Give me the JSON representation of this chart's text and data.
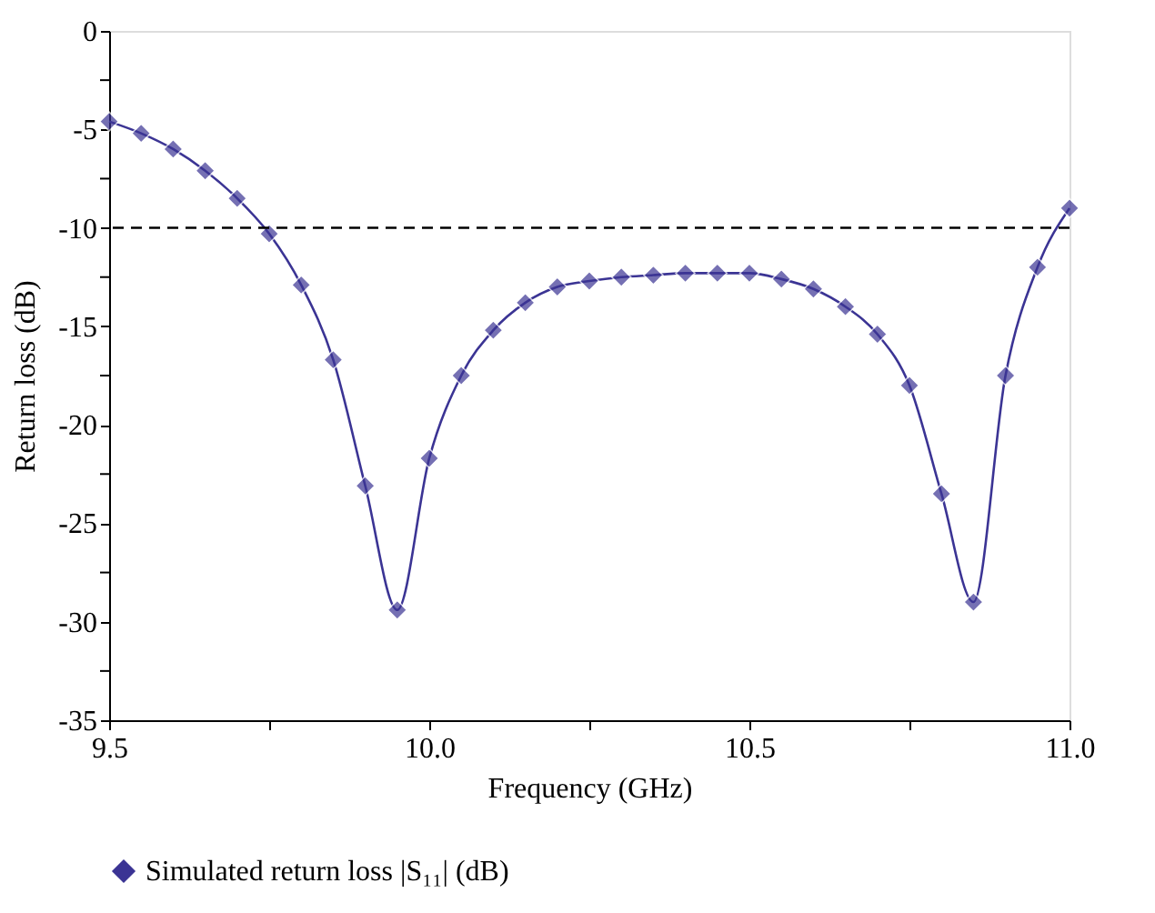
{
  "chart_data": {
    "type": "line",
    "xlabel": "Frequency (GHz)",
    "ylabel": "Return loss (dB)",
    "xlim": [
      9.5,
      11.0
    ],
    "ylim": [
      -35,
      0
    ],
    "xticks": [
      9.5,
      {
        "value": 9.75,
        "label": null
      },
      {
        "value": 10.0,
        "label": "10.0"
      },
      {
        "value": 10.25,
        "label": null
      },
      10.5,
      {
        "value": 10.75,
        "label": null
      },
      {
        "value": 11.0,
        "label": "11.0"
      }
    ],
    "yticks": [
      -35,
      {
        "value": -32.5,
        "label": null
      },
      -30,
      {
        "value": -27.5,
        "label": null
      },
      -25,
      {
        "value": -22.5,
        "label": null
      },
      -20,
      {
        "value": -17.5,
        "label": null
      },
      -15,
      {
        "value": -12.5,
        "label": null
      },
      -10,
      {
        "value": -7.5,
        "label": null
      },
      -5,
      {
        "value": -2.5,
        "label": null
      },
      0
    ],
    "x": [
      9.5,
      9.55,
      9.6,
      9.65,
      9.7,
      9.75,
      9.8,
      9.85,
      9.9,
      9.95,
      10.0,
      10.05,
      10.1,
      10.15,
      10.2,
      10.25,
      10.3,
      10.35,
      10.4,
      10.45,
      10.5,
      10.55,
      10.6,
      10.65,
      10.7,
      10.75,
      10.8,
      10.85,
      10.9,
      10.95,
      11.0
    ],
    "series": [
      {
        "name": "Simulated return loss |S₁₁| (dB)",
        "color": "#3b3494",
        "values": [
          -4.6,
          -5.2,
          -6.0,
          -7.1,
          -8.5,
          -10.3,
          -12.9,
          -16.7,
          -23.1,
          -29.4,
          -21.7,
          -17.5,
          -15.2,
          -13.8,
          -13.0,
          -12.7,
          -12.5,
          -12.4,
          -12.3,
          -12.3,
          -12.3,
          -12.6,
          -13.1,
          -14.0,
          -15.4,
          -18.0,
          -23.5,
          -29.0,
          -17.5,
          -12.0,
          -9.0
        ]
      }
    ],
    "ref_lines": [
      {
        "axis": "y",
        "value": -10,
        "color": "#000000",
        "line_style": "dashed"
      }
    ],
    "marker": "diamond",
    "line_style": "solid",
    "grid": false,
    "legend": "bottom"
  }
}
